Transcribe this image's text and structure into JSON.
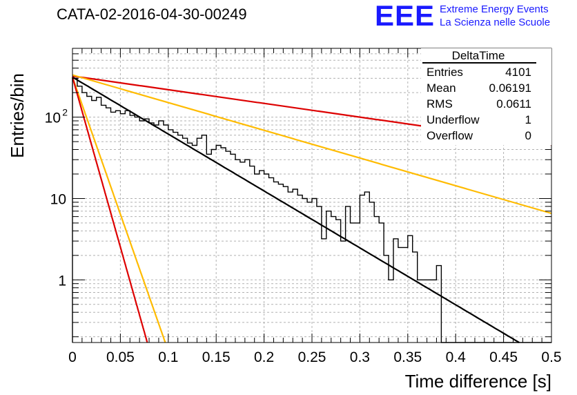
{
  "header": {
    "title": "CATA-02-2016-04-30-00249",
    "logo": "EEE",
    "logo_line1": "Extreme Energy Events",
    "logo_line2": "La Scienza nelle Scuole"
  },
  "stats_box": {
    "title": "DeltaTime",
    "rows": [
      {
        "label": "Entries",
        "value": "4101"
      },
      {
        "label": "Mean",
        "value": "0.06191"
      },
      {
        "label": "RMS",
        "value": "0.0611"
      },
      {
        "label": "Underflow",
        "value": "1"
      },
      {
        "label": "Overflow",
        "value": "0"
      }
    ]
  },
  "chart_data": {
    "type": "line",
    "xlabel": "Time difference [s]",
    "ylabel": "Entries/bin",
    "xlim": [
      0,
      0.5
    ],
    "ylim": [
      0.17,
      700
    ],
    "yscale": "log",
    "grid": true,
    "x_ticks": [
      "0",
      "0.05",
      "0.1",
      "0.15",
      "0.2",
      "0.25",
      "0.3",
      "0.35",
      "0.4",
      "0.45",
      "0.5"
    ],
    "y_ticks": [
      {
        "value": 1,
        "label": "1"
      },
      {
        "value": 10,
        "label": "10"
      },
      {
        "value": 100,
        "label": "10",
        "exponent": "2"
      }
    ],
    "histogram": {
      "bin_width": 0.005,
      "counts": [
        300,
        240,
        200,
        180,
        160,
        175,
        140,
        130,
        115,
        120,
        110,
        120,
        105,
        100,
        90,
        95,
        85,
        80,
        90,
        80,
        70,
        65,
        60,
        55,
        48,
        45,
        55,
        60,
        35,
        40,
        45,
        42,
        38,
        35,
        30,
        28,
        30,
        25,
        20,
        22,
        20,
        18,
        16,
        15,
        14,
        12,
        13,
        11,
        10,
        9,
        10,
        8,
        3.2,
        7,
        6,
        5.5,
        3,
        8,
        5,
        5,
        11,
        12,
        9,
        6,
        5,
        2,
        1,
        3.2,
        2.5,
        2.5,
        3.5,
        2.2,
        1,
        1,
        1,
        1,
        1.5,
        0.17,
        0,
        0,
        0,
        0,
        0,
        0,
        0,
        0,
        0,
        0,
        0,
        0,
        0,
        0,
        0,
        0,
        0,
        0,
        0,
        0,
        0,
        0
      ],
      "color": "#000000"
    },
    "curves": [
      {
        "A": 320,
        "tau": 0.258,
        "color": "#dd0000"
      },
      {
        "A": 330,
        "tau": 0.1276,
        "color": "#ffbb00"
      },
      {
        "A": 310,
        "tau": 0.0621,
        "color": "#000000"
      },
      {
        "A": 310,
        "tau": 0.0129,
        "color": "#ffbb00"
      },
      {
        "A": 310,
        "tau": 0.0104,
        "color": "#dd0000"
      }
    ]
  }
}
